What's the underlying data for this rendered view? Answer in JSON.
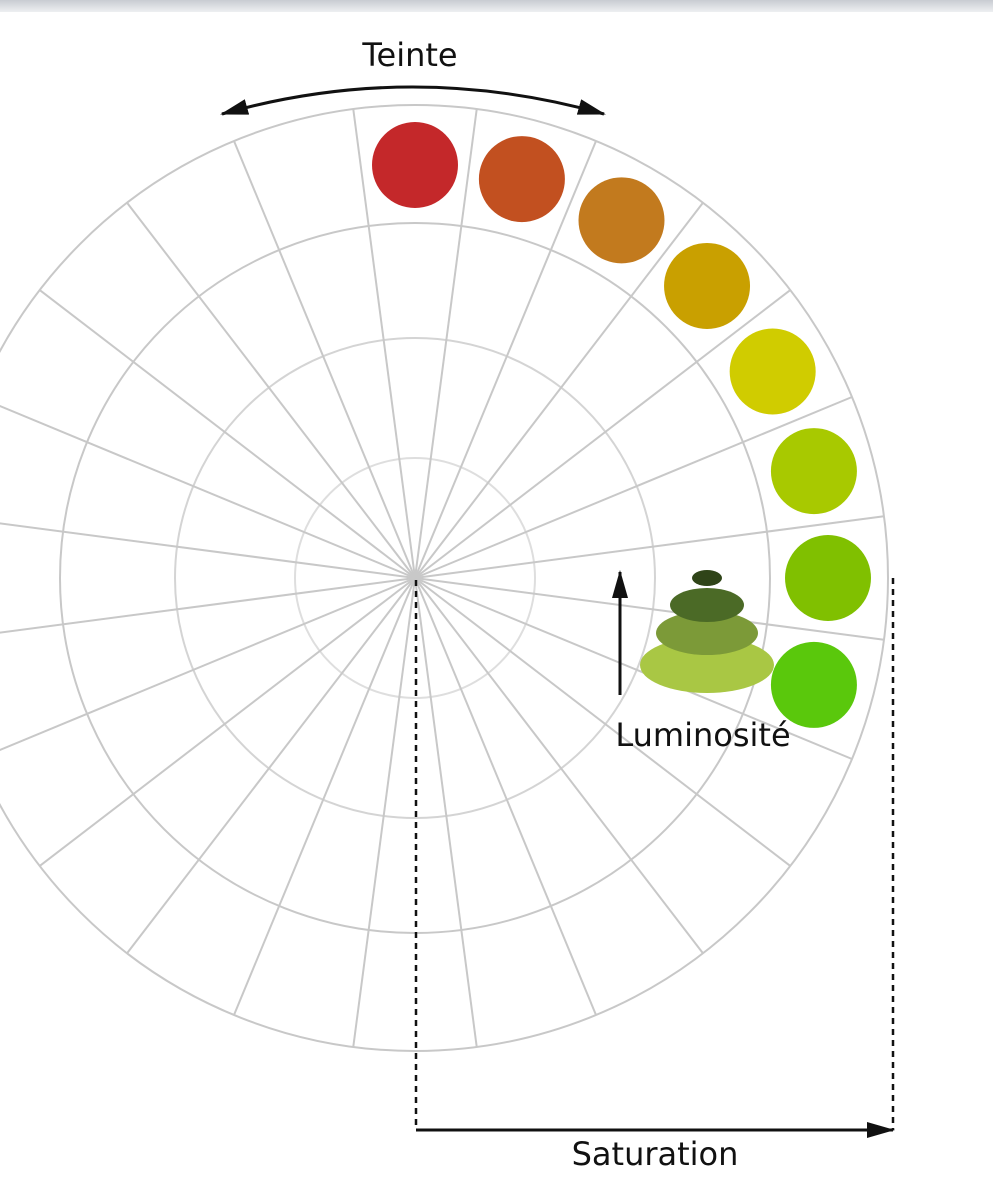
{
  "labels": {
    "hue": "Teinte",
    "luminosity": "Luminosité",
    "saturation": "Saturation"
  }
}
